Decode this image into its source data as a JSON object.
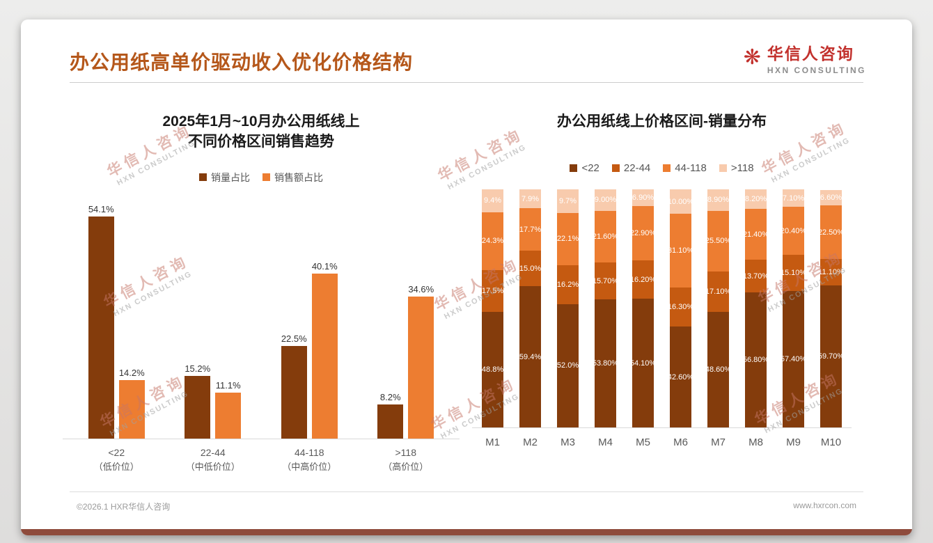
{
  "page": {
    "title": "办公用纸高单价驱动收入优化价格结构",
    "footer_left": "©2026.1 HXR华信人咨询",
    "footer_right": "www.hxrcon.com"
  },
  "logo": {
    "icon": "flower-icon",
    "name_cn": "华信人咨询",
    "name_en": "HXN CONSULTING"
  },
  "watermark": {
    "line1": "华信人咨询",
    "line2": "HXN CONSULTING"
  },
  "colors": {
    "title": "#B5571A",
    "series_dark": "#843C0C",
    "series_mid": "#C55A11",
    "series_orange": "#ED7D31",
    "series_light": "#F8CBAD",
    "bottom_bar": "#8E4B3C"
  },
  "chart_data": [
    {
      "type": "bar",
      "title_lines": [
        "2025年1月~10月办公用纸线上",
        "不同价格区间销售趋势"
      ],
      "categories": [
        "<22",
        "22-44",
        "44-118",
        ">118"
      ],
      "category_sublabels": [
        "（低价位）",
        "（中低价位）",
        "（中高价位）",
        "（高价位）"
      ],
      "ylim": [
        0,
        60
      ],
      "grid": false,
      "legend_position": "top",
      "series": [
        {
          "name": "销量占比",
          "color": "#843C0C",
          "values": [
            54.1,
            15.2,
            22.5,
            8.2
          ],
          "labels": [
            "54.1%",
            "15.2%",
            "22.5%",
            "8.2%"
          ]
        },
        {
          "name": "销售额占比",
          "color": "#ED7D31",
          "values": [
            14.2,
            11.1,
            40.1,
            34.6
          ],
          "labels": [
            "14.2%",
            "11.1%",
            "40.1%",
            "34.6%"
          ]
        }
      ]
    },
    {
      "type": "bar",
      "subtype": "stacked-percent",
      "title": "办公用纸线上价格区间-销量分布",
      "categories": [
        "M1",
        "M2",
        "M3",
        "M4",
        "M5",
        "M6",
        "M7",
        "M8",
        "M9",
        "M10"
      ],
      "ylim": [
        0,
        100
      ],
      "grid": false,
      "legend_position": "top",
      "series": [
        {
          "name": "<22",
          "color": "#843C0C",
          "values": [
            48.8,
            59.4,
            52.0,
            53.8,
            54.1,
            42.6,
            48.6,
            56.8,
            57.4,
            59.7
          ],
          "labels": [
            "48.8%",
            "59.4%",
            "52.0%",
            "53.80%",
            "54.10%",
            "42.60%",
            "48.60%",
            "56.80%",
            "57.40%",
            "59.70%"
          ]
        },
        {
          "name": "22-44",
          "color": "#C55A11",
          "values": [
            17.5,
            15.0,
            16.2,
            15.7,
            16.2,
            16.3,
            17.1,
            13.7,
            15.1,
            11.1
          ],
          "labels": [
            "17.5%",
            "15.0%",
            "16.2%",
            "15.70%",
            "16.20%",
            "16.30%",
            "17.10%",
            "13.70%",
            "15.10%",
            "11.10%"
          ]
        },
        {
          "name": "44-118",
          "color": "#ED7D31",
          "values": [
            24.3,
            17.7,
            22.1,
            21.6,
            22.9,
            31.1,
            25.5,
            21.4,
            20.4,
            22.5
          ],
          "labels": [
            "24.3%",
            "17.7%",
            "22.1%",
            "21.60%",
            "22.90%",
            "31.10%",
            "25.50%",
            "21.40%",
            "20.40%",
            "22.50%"
          ]
        },
        {
          "name": ">118",
          "color": "#F8CBAD",
          "values": [
            9.4,
            7.9,
            9.7,
            9.0,
            6.9,
            10.0,
            8.9,
            8.2,
            7.1,
            6.6
          ],
          "labels": [
            "9.4%",
            "7.9%",
            "9.7%",
            "9.00%",
            "6.90%",
            "10.00%",
            "8.90%",
            "8.20%",
            "7.10%",
            "6.60%"
          ]
        }
      ]
    }
  ]
}
